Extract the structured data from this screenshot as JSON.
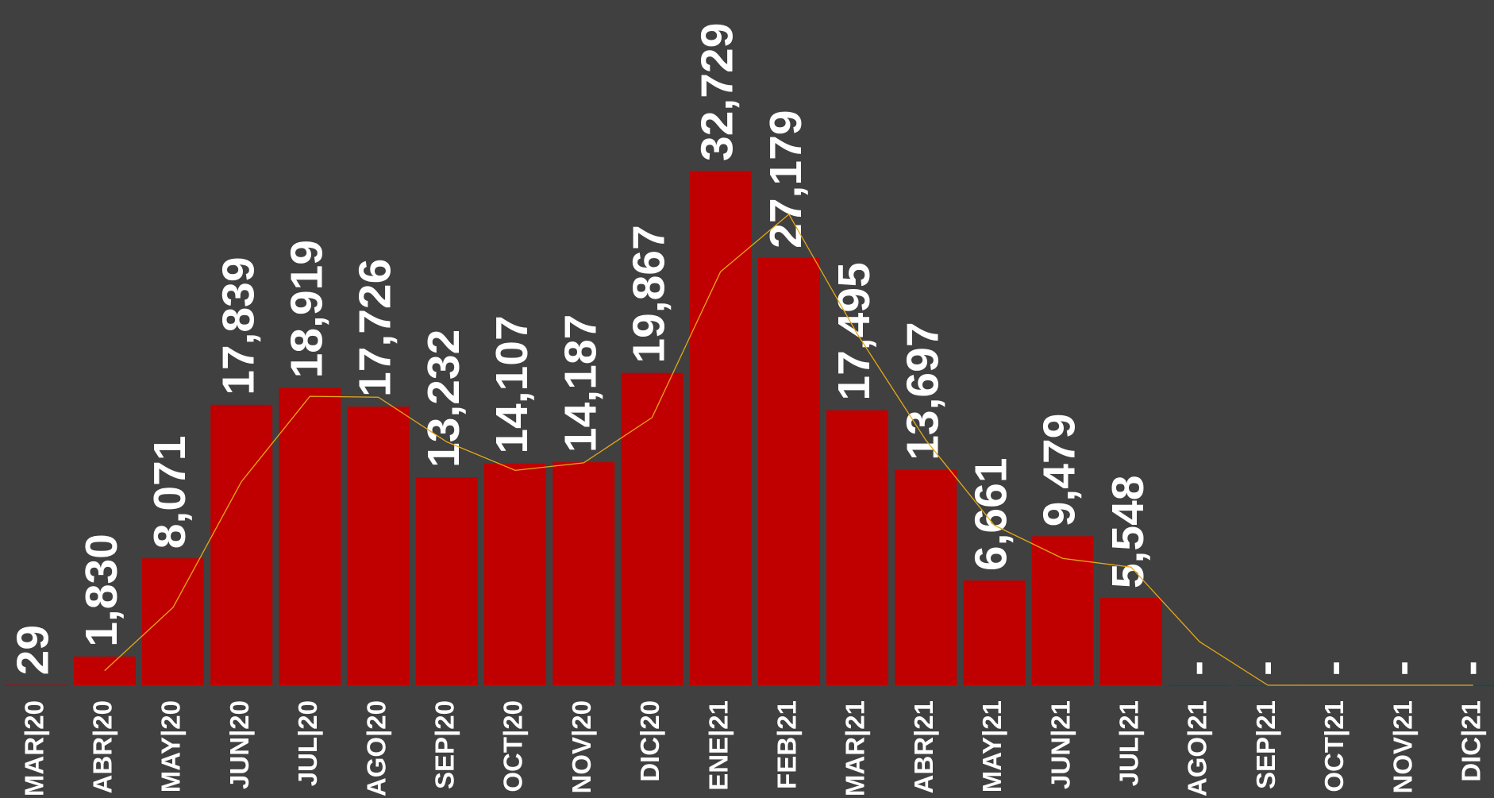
{
  "chart_data": {
    "type": "bar",
    "categories": [
      "MAR|20",
      "ABR|20",
      "MAY|20",
      "JUN|20",
      "JUL|20",
      "AGO|20",
      "SEP|20",
      "OCT|20",
      "NOV|20",
      "DIC|20",
      "ENE|21",
      "FEB|21",
      "MAR|21",
      "ABR|21",
      "MAY|21",
      "JUN|21",
      "JUL|21",
      "AGO|21",
      "SEP|21",
      "OCT|21",
      "NOV|21",
      "DIC|21"
    ],
    "series": [
      {
        "type": "bar",
        "color": "#c00000",
        "values": [
          29,
          1830,
          8071,
          17839,
          18919,
          17726,
          13232,
          14107,
          14187,
          19867,
          32729,
          27179,
          17495,
          13697,
          6661,
          9479,
          5548,
          0,
          0,
          0,
          0,
          0
        ],
        "value_labels": [
          "29",
          "1,830",
          "8,071",
          "17,839",
          "18,919",
          "17,726",
          "13,232",
          "14,107",
          "14,187",
          "19,867",
          "32,729",
          "27,179",
          "17,495",
          "13,697",
          "6,661",
          "9,479",
          "5,548",
          "-",
          "-",
          "-",
          "-",
          "-"
        ]
      },
      {
        "type": "line",
        "color": "#e6a817",
        "values": [
          null,
          930,
          4950,
          12955,
          18379,
          18322,
          15479,
          13670,
          14147,
          17027,
          26298,
          29954,
          22337,
          15596,
          10179,
          8070,
          7514,
          2774,
          0,
          0,
          0,
          0
        ]
      }
    ],
    "ylim": [
      0,
      40000
    ]
  }
}
